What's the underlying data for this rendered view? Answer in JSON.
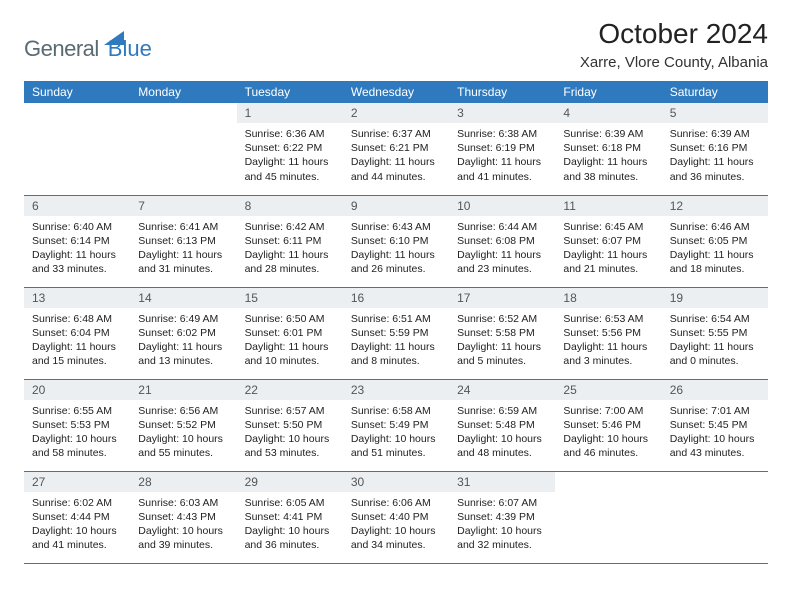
{
  "logo": {
    "text1": "General",
    "text2": "Blue"
  },
  "title": "October 2024",
  "location": "Xarre, Vlore County, Albania",
  "colors": {
    "header_bg": "#2f7abf",
    "header_fg": "#ffffff",
    "daynum_bg": "#eceff1",
    "daynum_fg": "#555555",
    "border": "#2f7abf",
    "logo_gray": "#5a6a72",
    "logo_blue": "#2f7abf"
  },
  "weekdays": [
    "Sunday",
    "Monday",
    "Tuesday",
    "Wednesday",
    "Thursday",
    "Friday",
    "Saturday"
  ],
  "weeks": [
    [
      null,
      null,
      {
        "n": "1",
        "sr": "6:36 AM",
        "ss": "6:22 PM",
        "dl": "11 hours and 45 minutes."
      },
      {
        "n": "2",
        "sr": "6:37 AM",
        "ss": "6:21 PM",
        "dl": "11 hours and 44 minutes."
      },
      {
        "n": "3",
        "sr": "6:38 AM",
        "ss": "6:19 PM",
        "dl": "11 hours and 41 minutes."
      },
      {
        "n": "4",
        "sr": "6:39 AM",
        "ss": "6:18 PM",
        "dl": "11 hours and 38 minutes."
      },
      {
        "n": "5",
        "sr": "6:39 AM",
        "ss": "6:16 PM",
        "dl": "11 hours and 36 minutes."
      }
    ],
    [
      {
        "n": "6",
        "sr": "6:40 AM",
        "ss": "6:14 PM",
        "dl": "11 hours and 33 minutes."
      },
      {
        "n": "7",
        "sr": "6:41 AM",
        "ss": "6:13 PM",
        "dl": "11 hours and 31 minutes."
      },
      {
        "n": "8",
        "sr": "6:42 AM",
        "ss": "6:11 PM",
        "dl": "11 hours and 28 minutes."
      },
      {
        "n": "9",
        "sr": "6:43 AM",
        "ss": "6:10 PM",
        "dl": "11 hours and 26 minutes."
      },
      {
        "n": "10",
        "sr": "6:44 AM",
        "ss": "6:08 PM",
        "dl": "11 hours and 23 minutes."
      },
      {
        "n": "11",
        "sr": "6:45 AM",
        "ss": "6:07 PM",
        "dl": "11 hours and 21 minutes."
      },
      {
        "n": "12",
        "sr": "6:46 AM",
        "ss": "6:05 PM",
        "dl": "11 hours and 18 minutes."
      }
    ],
    [
      {
        "n": "13",
        "sr": "6:48 AM",
        "ss": "6:04 PM",
        "dl": "11 hours and 15 minutes."
      },
      {
        "n": "14",
        "sr": "6:49 AM",
        "ss": "6:02 PM",
        "dl": "11 hours and 13 minutes."
      },
      {
        "n": "15",
        "sr": "6:50 AM",
        "ss": "6:01 PM",
        "dl": "11 hours and 10 minutes."
      },
      {
        "n": "16",
        "sr": "6:51 AM",
        "ss": "5:59 PM",
        "dl": "11 hours and 8 minutes."
      },
      {
        "n": "17",
        "sr": "6:52 AM",
        "ss": "5:58 PM",
        "dl": "11 hours and 5 minutes."
      },
      {
        "n": "18",
        "sr": "6:53 AM",
        "ss": "5:56 PM",
        "dl": "11 hours and 3 minutes."
      },
      {
        "n": "19",
        "sr": "6:54 AM",
        "ss": "5:55 PM",
        "dl": "11 hours and 0 minutes."
      }
    ],
    [
      {
        "n": "20",
        "sr": "6:55 AM",
        "ss": "5:53 PM",
        "dl": "10 hours and 58 minutes."
      },
      {
        "n": "21",
        "sr": "6:56 AM",
        "ss": "5:52 PM",
        "dl": "10 hours and 55 minutes."
      },
      {
        "n": "22",
        "sr": "6:57 AM",
        "ss": "5:50 PM",
        "dl": "10 hours and 53 minutes."
      },
      {
        "n": "23",
        "sr": "6:58 AM",
        "ss": "5:49 PM",
        "dl": "10 hours and 51 minutes."
      },
      {
        "n": "24",
        "sr": "6:59 AM",
        "ss": "5:48 PM",
        "dl": "10 hours and 48 minutes."
      },
      {
        "n": "25",
        "sr": "7:00 AM",
        "ss": "5:46 PM",
        "dl": "10 hours and 46 minutes."
      },
      {
        "n": "26",
        "sr": "7:01 AM",
        "ss": "5:45 PM",
        "dl": "10 hours and 43 minutes."
      }
    ],
    [
      {
        "n": "27",
        "sr": "6:02 AM",
        "ss": "4:44 PM",
        "dl": "10 hours and 41 minutes."
      },
      {
        "n": "28",
        "sr": "6:03 AM",
        "ss": "4:43 PM",
        "dl": "10 hours and 39 minutes."
      },
      {
        "n": "29",
        "sr": "6:05 AM",
        "ss": "4:41 PM",
        "dl": "10 hours and 36 minutes."
      },
      {
        "n": "30",
        "sr": "6:06 AM",
        "ss": "4:40 PM",
        "dl": "10 hours and 34 minutes."
      },
      {
        "n": "31",
        "sr": "6:07 AM",
        "ss": "4:39 PM",
        "dl": "10 hours and 32 minutes."
      },
      null,
      null
    ]
  ],
  "labels": {
    "sunrise": "Sunrise: ",
    "sunset": "Sunset: ",
    "daylight": "Daylight: "
  }
}
